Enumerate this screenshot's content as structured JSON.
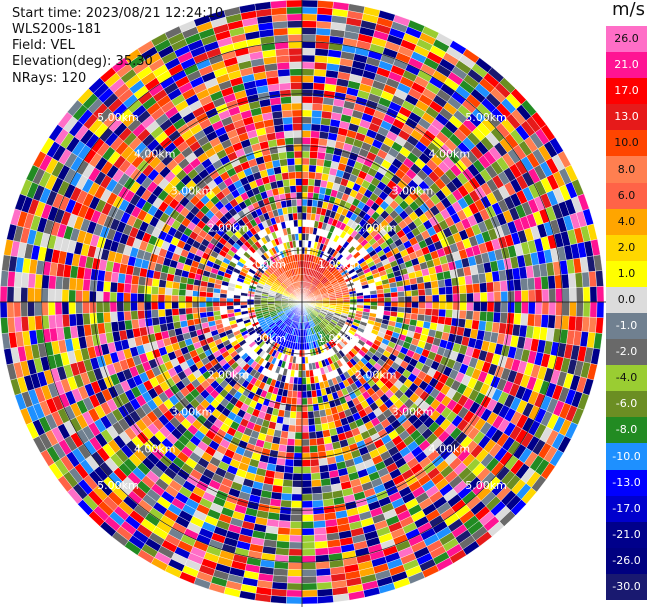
{
  "info": {
    "start_time": "Start time: 2023/08/21 12:24:10",
    "station": "WLS200s-181",
    "field": "Field: VEL",
    "elevation": "Elevation(deg): 35.30",
    "nrays": "NRays: 120"
  },
  "colorbar": {
    "unit": "m/s",
    "ticks": [
      "26.0",
      "21.0",
      "17.0",
      "13.0",
      "10.0",
      "8.0",
      "6.0",
      "4.0",
      "2.0",
      "1.0",
      "0.0",
      "-1.0",
      "-2.0",
      "-4.0",
      "-6.0",
      "-8.0",
      "-10.0",
      "-13.0",
      "-17.0",
      "-21.0",
      "-26.0",
      "-30.0"
    ],
    "colors": [
      "#ff6ec7",
      "#ff1493",
      "#ff0000",
      "#e61a1a",
      "#ff4500",
      "#ff7f50",
      "#ff6347",
      "#ffa500",
      "#ffd700",
      "#ffff00",
      "#dcdcdc",
      "#708090",
      "#696969",
      "#9acd32",
      "#6b8e23",
      "#228b22",
      "#1e90ff",
      "#0000ff",
      "#0000cd",
      "#00008b",
      "#000080",
      "#191970"
    ]
  },
  "chart_data": {
    "type": "ppi-radar",
    "field": "VEL",
    "unit": "m/s",
    "nrays": 120,
    "elevation_deg": 35.3,
    "range_rings": [
      "1.00km",
      "2.00km",
      "3.00km",
      "4.00km",
      "5.00km"
    ],
    "range_ring_km": [
      1,
      2,
      3,
      4,
      5
    ],
    "max_range_km": 5.8,
    "near_field": {
      "north_sector": "positive (orange/red)",
      "south_sector": "negative (blue)",
      "east_sector": "positive (yellow)",
      "west_sector": "negative (green)"
    },
    "far_field": "noise (random colors)",
    "crosshair": true
  }
}
